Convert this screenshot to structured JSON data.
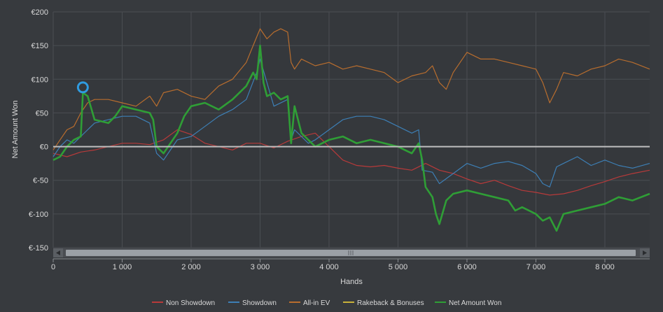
{
  "chart_data": {
    "type": "line",
    "title": "",
    "xlabel": "Hands",
    "ylabel": "Net Amount Won",
    "xlim": [
      0,
      8650
    ],
    "ylim": [
      -150,
      200
    ],
    "x_ticks": [
      0,
      1000,
      2000,
      3000,
      4000,
      5000,
      6000,
      7000,
      8000
    ],
    "x_tick_labels": [
      "0",
      "1 000",
      "2 000",
      "3 000",
      "4 000",
      "5 000",
      "6 000",
      "7 000",
      "8 000"
    ],
    "y_ticks": [
      200,
      150,
      100,
      50,
      0,
      -50,
      -100,
      -150
    ],
    "y_tick_labels": [
      "€200",
      "€150",
      "€100",
      "€50",
      "€0",
      "€-50",
      "€-100",
      "€-150"
    ],
    "grid": true,
    "legend_position": "bottom",
    "marker": {
      "x": 430,
      "y": 88
    },
    "series": [
      {
        "name": "Non Showdown",
        "color": "#b83a3a",
        "x": [
          0,
          200,
          400,
          600,
          800,
          1000,
          1200,
          1400,
          1600,
          1800,
          2000,
          2200,
          2400,
          2600,
          2800,
          3000,
          3200,
          3400,
          3600,
          3800,
          4000,
          4200,
          4400,
          4600,
          4800,
          5000,
          5200,
          5400,
          5600,
          5800,
          6000,
          6200,
          6400,
          6600,
          6800,
          7000,
          7200,
          7400,
          7600,
          7800,
          8000,
          8200,
          8400,
          8650
        ],
        "values": [
          -10,
          -15,
          -8,
          -5,
          0,
          5,
          5,
          3,
          10,
          25,
          18,
          5,
          0,
          -5,
          5,
          5,
          -2,
          8,
          15,
          20,
          0,
          -20,
          -28,
          -30,
          -28,
          -32,
          -35,
          -25,
          -35,
          -40,
          -48,
          -55,
          -50,
          -58,
          -65,
          -68,
          -72,
          -70,
          -65,
          -58,
          -52,
          -45,
          -40,
          -35
        ]
      },
      {
        "name": "Showdown",
        "color": "#3d7fb5",
        "x": [
          0,
          100,
          200,
          300,
          400,
          500,
          600,
          800,
          1000,
          1200,
          1400,
          1500,
          1600,
          1700,
          1800,
          2000,
          2200,
          2400,
          2600,
          2800,
          2950,
          3000,
          3100,
          3200,
          3400,
          3450,
          3500,
          3700,
          3800,
          4000,
          4200,
          4400,
          4600,
          4800,
          5000,
          5200,
          5300,
          5350,
          5500,
          5600,
          5800,
          6000,
          6200,
          6400,
          6600,
          6800,
          7000,
          7100,
          7200,
          7300,
          7400,
          7600,
          7800,
          8000,
          8200,
          8400,
          8650
        ],
        "values": [
          -15,
          0,
          10,
          5,
          15,
          25,
          35,
          40,
          45,
          45,
          35,
          -10,
          -20,
          -5,
          10,
          15,
          30,
          45,
          55,
          70,
          110,
          130,
          95,
          60,
          70,
          10,
          25,
          5,
          10,
          25,
          40,
          45,
          45,
          40,
          30,
          20,
          25,
          -35,
          -38,
          -55,
          -40,
          -25,
          -32,
          -25,
          -22,
          -28,
          -40,
          -55,
          -60,
          -30,
          -25,
          -15,
          -28,
          -20,
          -28,
          -32,
          -25
        ]
      },
      {
        "name": "All-in EV",
        "color": "#b86d2e",
        "x": [
          0,
          100,
          200,
          300,
          400,
          500,
          600,
          800,
          1000,
          1200,
          1400,
          1500,
          1600,
          1800,
          2000,
          2200,
          2400,
          2600,
          2800,
          2900,
          3000,
          3100,
          3200,
          3300,
          3400,
          3450,
          3500,
          3600,
          3800,
          4000,
          4200,
          4400,
          4600,
          4800,
          5000,
          5200,
          5400,
          5500,
          5600,
          5700,
          5800,
          6000,
          6200,
          6400,
          6600,
          6800,
          7000,
          7100,
          7200,
          7300,
          7400,
          7600,
          7800,
          8000,
          8200,
          8400,
          8650
        ],
        "values": [
          -5,
          10,
          25,
          30,
          50,
          65,
          70,
          70,
          65,
          60,
          75,
          60,
          80,
          85,
          75,
          70,
          90,
          100,
          125,
          150,
          175,
          160,
          170,
          175,
          170,
          125,
          115,
          130,
          120,
          125,
          115,
          120,
          115,
          110,
          95,
          105,
          110,
          120,
          95,
          85,
          110,
          140,
          130,
          130,
          125,
          120,
          115,
          95,
          65,
          85,
          110,
          105,
          115,
          120,
          130,
          125,
          115
        ]
      },
      {
        "name": "Rakeback & Bonuses",
        "color": "#c9b23a",
        "x": [
          0,
          8650
        ],
        "values": [
          0,
          0
        ]
      },
      {
        "name": "Net Amount Won",
        "color": "#2f9e36",
        "x": [
          0,
          100,
          200,
          300,
          400,
          430,
          500,
          600,
          800,
          900,
          1000,
          1200,
          1400,
          1450,
          1500,
          1600,
          1700,
          1800,
          1900,
          2000,
          2200,
          2400,
          2600,
          2800,
          2900,
          2950,
          3000,
          3050,
          3100,
          3200,
          3300,
          3400,
          3450,
          3500,
          3600,
          3700,
          3800,
          3900,
          4000,
          4200,
          4400,
          4600,
          4800,
          5000,
          5100,
          5200,
          5300,
          5350,
          5400,
          5500,
          5550,
          5600,
          5700,
          5800,
          6000,
          6200,
          6400,
          6600,
          6700,
          6800,
          7000,
          7100,
          7200,
          7300,
          7400,
          7600,
          7800,
          8000,
          8200,
          8400,
          8650
        ],
        "values": [
          -20,
          -15,
          0,
          10,
          15,
          80,
          75,
          40,
          35,
          45,
          60,
          55,
          50,
          40,
          0,
          -10,
          5,
          20,
          45,
          60,
          65,
          55,
          70,
          90,
          110,
          100,
          150,
          95,
          75,
          80,
          70,
          75,
          5,
          60,
          20,
          10,
          0,
          5,
          10,
          15,
          5,
          10,
          5,
          0,
          -5,
          -10,
          5,
          -20,
          -60,
          -75,
          -100,
          -115,
          -80,
          -70,
          -65,
          -70,
          -75,
          -80,
          -95,
          -90,
          -100,
          -110,
          -105,
          -125,
          -100,
          -95,
          -90,
          -85,
          -75,
          -80,
          -70
        ]
      }
    ]
  }
}
